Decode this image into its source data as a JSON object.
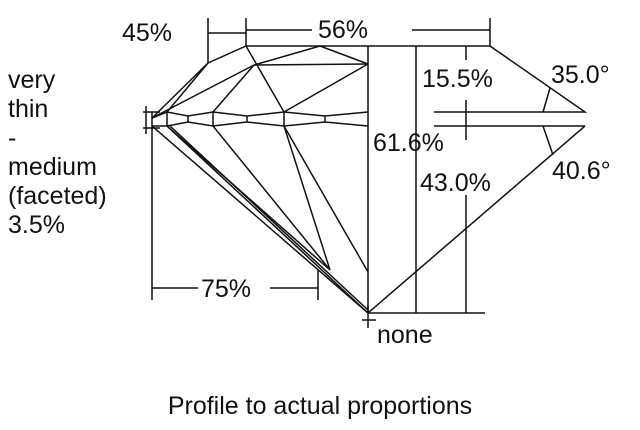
{
  "labels": {
    "crown_height": "15.5%",
    "table": "56%",
    "star_length": "45%",
    "crown_angle": "35.0°",
    "total_depth": "61.6%",
    "pavilion_depth": "43.0%",
    "pavilion_angle": "40.6°",
    "lower_half": "75%",
    "culet": "none",
    "girdle": [
      "very",
      "thin",
      "-",
      "medium",
      "(faceted)",
      "3.5%"
    ]
  },
  "caption": "Profile to actual proportions"
}
